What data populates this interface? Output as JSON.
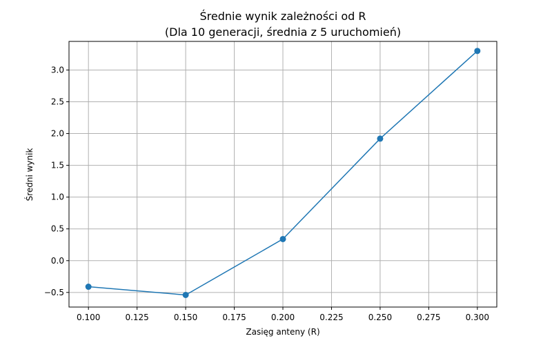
{
  "chart_data": {
    "type": "line",
    "title": "Średnie wynik zależności od R",
    "subtitle": "(Dla 10 generacji, średnia z 5 uruchomień)",
    "xlabel": "Zasięg anteny (R)",
    "ylabel": "Średni wynik",
    "x": [
      0.1,
      0.15,
      0.2,
      0.25,
      0.3
    ],
    "series": [
      {
        "values": [
          -0.41,
          -0.54,
          0.34,
          1.92,
          3.3
        ]
      }
    ],
    "xlim": [
      0.09,
      0.31
    ],
    "ylim": [
      -0.73,
      3.45
    ],
    "xticks": [
      "0.100",
      "0.125",
      "0.150",
      "0.175",
      "0.200",
      "0.225",
      "0.250",
      "0.275",
      "0.300"
    ],
    "xtick_values": [
      0.1,
      0.125,
      0.15,
      0.175,
      0.2,
      0.225,
      0.25,
      0.275,
      0.3
    ],
    "yticks": [
      "−0.5",
      "0.0",
      "0.5",
      "1.0",
      "1.5",
      "2.0",
      "2.5",
      "3.0"
    ],
    "ytick_values": [
      -0.5,
      0,
      0.5,
      1.0,
      1.5,
      2.0,
      2.5,
      3.0
    ],
    "grid": true,
    "line_color": "#1f77b4",
    "grid_color": "#b0b0b0"
  }
}
